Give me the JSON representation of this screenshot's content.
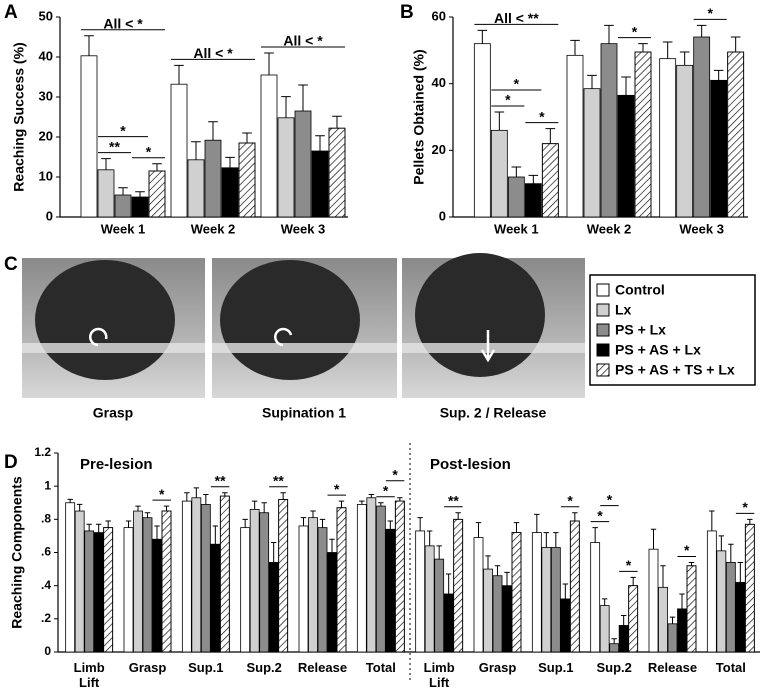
{
  "chart_data": [
    {
      "type": "bar",
      "panel": "A",
      "y_label": "Reaching Success (%)",
      "categories": [
        "Week 1",
        "Week 2",
        "Week 3"
      ],
      "ylim": [
        0,
        50
      ],
      "yticks": [
        0,
        10,
        20,
        30,
        40,
        50
      ],
      "series": [
        {
          "name": "Control",
          "color": "#ffffff",
          "values": [
            40.3,
            33.2,
            35.5
          ],
          "errors": [
            5,
            4.7,
            5.5
          ]
        },
        {
          "name": "Lx",
          "color": "#d0d0d0",
          "values": [
            11.8,
            14.3,
            24.8
          ],
          "errors": [
            2.8,
            4.5,
            5.3
          ]
        },
        {
          "name": "PS + Lx",
          "color": "#8c8c8c",
          "values": [
            5.5,
            19.2,
            26.5
          ],
          "errors": [
            1.8,
            4.6,
            6.5
          ]
        },
        {
          "name": "PS + AS + Lx",
          "color": "#000000",
          "values": [
            5.0,
            12.3,
            16.5
          ],
          "errors": [
            1.3,
            2.6,
            3.8
          ]
        },
        {
          "name": "PS + AS + TS + Lx",
          "color": "#ffffff",
          "hatch": true,
          "values": [
            11.5,
            18.5,
            22.2
          ],
          "errors": [
            1.8,
            2.5,
            3
          ]
        }
      ],
      "annotations": [
        {
          "text": "**",
          "category": 0,
          "between": [
            1,
            2
          ]
        },
        {
          "text": "*",
          "category": 0,
          "between": [
            3,
            4
          ]
        },
        {
          "text": "*",
          "category": 0,
          "between": [
            1,
            3
          ]
        },
        {
          "text": "All < *",
          "category": 0,
          "between": [
            0,
            4
          ]
        },
        {
          "text": "All < *",
          "category": 1,
          "between": [
            0,
            4
          ]
        },
        {
          "text": "All < *",
          "category": 2,
          "between": [
            0,
            4
          ]
        }
      ]
    },
    {
      "type": "bar",
      "panel": "B",
      "y_label": "Pellets Obtained (%)",
      "categories": [
        "Week 1",
        "Week 2",
        "Week 3"
      ],
      "ylim": [
        0,
        60
      ],
      "yticks": [
        0,
        20,
        40,
        60
      ],
      "series": [
        {
          "color": "#ffffff",
          "values": [
            52,
            48.5,
            47.5
          ],
          "errors": [
            4,
            4.5,
            5
          ]
        },
        {
          "color": "#d0d0d0",
          "values": [
            26,
            38.5,
            45.5
          ],
          "errors": [
            5.5,
            4,
            4
          ]
        },
        {
          "color": "#8c8c8c",
          "values": [
            12,
            52,
            54
          ],
          "errors": [
            3,
            5.5,
            3.5
          ]
        },
        {
          "color": "#000000",
          "values": [
            10,
            36.5,
            41
          ],
          "errors": [
            2.5,
            5.5,
            3
          ]
        },
        {
          "color": "#ffffff",
          "hatch": true,
          "values": [
            22,
            49.5,
            49.5
          ],
          "errors": [
            4.5,
            2.5,
            4.5
          ]
        }
      ],
      "annotations": [
        {
          "text": "*",
          "category": 0,
          "between": [
            1,
            2
          ]
        },
        {
          "text": "*",
          "category": 0,
          "between": [
            3,
            4
          ]
        },
        {
          "text": "*",
          "category": 0,
          "between": [
            1,
            3
          ]
        },
        {
          "text": "All < **",
          "category": 0,
          "between": [
            0,
            4
          ]
        },
        {
          "text": "*",
          "category": 1,
          "between": [
            3,
            4
          ]
        },
        {
          "text": "*",
          "category": 2,
          "between": [
            2,
            3
          ]
        }
      ]
    },
    {
      "type": "bar",
      "panel": "D",
      "y_label": "Reaching Components",
      "section_labels": [
        "Pre-lesion",
        "Post-lesion"
      ],
      "categories": [
        "Limb Lift",
        "Grasp",
        "Sup.1",
        "Sup.2",
        "Release",
        "Total",
        "Limb Lift",
        "Grasp",
        "Sup.1",
        "Sup.2",
        "Release",
        "Total"
      ],
      "ylim": [
        0,
        1.2
      ],
      "yticks": [
        0,
        {
          "value": 0.2,
          "label": ".2"
        },
        {
          "value": 0.4,
          "label": ".4"
        },
        {
          "value": 0.6,
          "label": ".6"
        },
        {
          "value": 0.8,
          "label": ".8"
        },
        1,
        1.2
      ],
      "series": [
        {
          "color": "#ffffff",
          "values": [
            0.9,
            0.75,
            0.91,
            0.75,
            0.76,
            0.89,
            0.73,
            0.69,
            0.72,
            0.66,
            0.62,
            0.73
          ],
          "errors": [
            0.02,
            0.04,
            0.05,
            0.05,
            0.05,
            0.02,
            0.08,
            0.09,
            0.11,
            0.09,
            0.12,
            0.12
          ]
        },
        {
          "color": "#d0d0d0",
          "values": [
            0.85,
            0.85,
            0.93,
            0.86,
            0.81,
            0.93,
            0.64,
            0.5,
            0.63,
            0.28,
            0.39,
            0.61
          ],
          "errors": [
            0.04,
            0.03,
            0.06,
            0.05,
            0.04,
            0.02,
            0.09,
            0.08,
            0.09,
            0.04,
            0.13,
            0.09
          ]
        },
        {
          "color": "#8c8c8c",
          "values": [
            0.73,
            0.81,
            0.89,
            0.84,
            0.75,
            0.88,
            0.56,
            0.46,
            0.63,
            0.05,
            0.17,
            0.54
          ],
          "errors": [
            0.04,
            0.03,
            0.06,
            0.06,
            0.05,
            0.02,
            0.08,
            0.06,
            0.09,
            0.03,
            0.04,
            0.11
          ]
        },
        {
          "color": "#000000",
          "values": [
            0.72,
            0.68,
            0.65,
            0.54,
            0.6,
            0.74,
            0.35,
            0.4,
            0.32,
            0.16,
            0.26,
            0.42
          ],
          "errors": [
            0.05,
            0.08,
            0.11,
            0.12,
            0.08,
            0.05,
            0.12,
            0.08,
            0.09,
            0.06,
            0.09,
            0.12
          ]
        },
        {
          "color": "#ffffff",
          "hatch": true,
          "values": [
            0.75,
            0.85,
            0.94,
            0.92,
            0.87,
            0.91,
            0.8,
            0.72,
            0.79,
            0.4,
            0.52,
            0.77
          ],
          "errors": [
            0.04,
            0.03,
            0.02,
            0.04,
            0.04,
            0.02,
            0.04,
            0.06,
            0.05,
            0.05,
            0.02,
            0.03
          ]
        }
      ],
      "annotations": [
        {
          "text": "*",
          "category": 1,
          "between": [
            3,
            4
          ]
        },
        {
          "text": "**",
          "category": 2,
          "between": [
            3,
            4
          ]
        },
        {
          "text": "**",
          "category": 3,
          "between": [
            3,
            4
          ]
        },
        {
          "text": "*",
          "category": 4,
          "between": [
            3,
            4
          ]
        },
        {
          "text": "*",
          "category": 5,
          "between": [
            2,
            3
          ]
        },
        {
          "text": "*",
          "category": 5,
          "between": [
            3,
            4
          ]
        },
        {
          "text": "**",
          "category": 6,
          "between": [
            3,
            4
          ]
        },
        {
          "text": "*",
          "category": 8,
          "between": [
            3,
            4
          ]
        },
        {
          "text": "*",
          "category": 9,
          "between": [
            0,
            1
          ]
        },
        {
          "text": "*",
          "category": 9,
          "between": [
            1,
            2
          ]
        },
        {
          "text": "*",
          "category": 9,
          "between": [
            3,
            4
          ]
        },
        {
          "text": "*",
          "category": 10,
          "between": [
            3,
            4
          ]
        },
        {
          "text": "*",
          "category": 11,
          "between": [
            3,
            4
          ]
        }
      ]
    }
  ],
  "photo_panel": {
    "label": "C",
    "captions": [
      "Grasp",
      "Supination 1",
      "Sup. 2 / Release"
    ]
  }
}
